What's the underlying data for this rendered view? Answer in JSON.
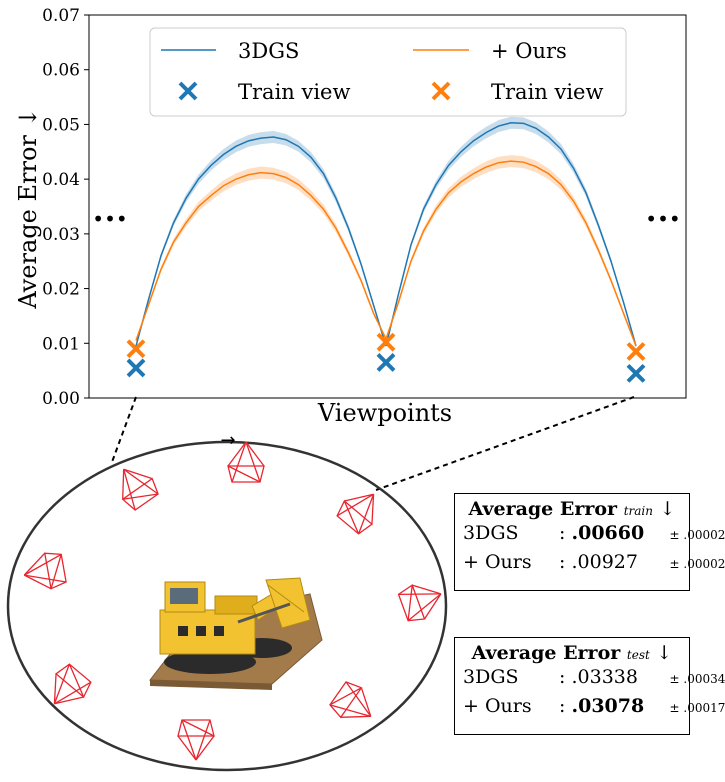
{
  "chart_data": {
    "type": "line",
    "xlabel": "Viewpoints",
    "ylabel": "Average Error ↓",
    "ylim": [
      0,
      0.07
    ],
    "yticks": [
      "0.00",
      "0.01",
      "0.02",
      "0.03",
      "0.04",
      "0.05",
      "0.06",
      "0.07"
    ],
    "x_tick_labels": "none",
    "grid": false,
    "legend_placement": "top-center",
    "ellipsis_markers": [
      "•••",
      "•••"
    ],
    "series": [
      {
        "name": "3DGS",
        "color": "#1f77b4",
        "segments": [
          {
            "x": [
              0,
              0.05,
              0.1,
              0.15,
              0.2,
              0.25,
              0.3,
              0.35,
              0.4,
              0.45,
              0.5,
              0.55,
              0.6,
              0.65,
              0.7,
              0.75,
              0.8,
              0.85,
              0.9,
              0.95,
              1.0
            ],
            "y": [
              0.0095,
              0.018,
              0.026,
              0.032,
              0.0365,
              0.04,
              0.0425,
              0.0445,
              0.046,
              0.047,
              0.0475,
              0.0477,
              0.0472,
              0.046,
              0.044,
              0.041,
              0.0365,
              0.031,
              0.0245,
              0.017,
              0.0095
            ]
          },
          {
            "x": [
              1.0,
              1.05,
              1.1,
              1.15,
              1.2,
              1.25,
              1.3,
              1.35,
              1.4,
              1.45,
              1.5,
              1.55,
              1.6,
              1.65,
              1.7,
              1.75,
              1.8,
              1.85,
              1.9,
              1.95,
              2.0
            ],
            "y": [
              0.0095,
              0.019,
              0.028,
              0.0345,
              0.039,
              0.0425,
              0.045,
              0.047,
              0.0485,
              0.0497,
              0.0503,
              0.0502,
              0.0493,
              0.0477,
              0.0455,
              0.042,
              0.0375,
              0.0315,
              0.025,
              0.0175,
              0.0095
            ]
          }
        ]
      },
      {
        "name": "+ Ours",
        "color": "#ff7f0e",
        "segments": [
          {
            "x": [
              0,
              0.05,
              0.1,
              0.15,
              0.2,
              0.25,
              0.3,
              0.35,
              0.4,
              0.45,
              0.5,
              0.55,
              0.6,
              0.65,
              0.7,
              0.75,
              0.8,
              0.85,
              0.9,
              0.95,
              1.0
            ],
            "y": [
              0.0105,
              0.017,
              0.0235,
              0.0285,
              0.032,
              0.035,
              0.037,
              0.0388,
              0.04,
              0.0408,
              0.0412,
              0.041,
              0.0403,
              0.039,
              0.037,
              0.0345,
              0.031,
              0.0265,
              0.0215,
              0.0155,
              0.0108
            ]
          },
          {
            "x": [
              1.0,
              1.05,
              1.1,
              1.15,
              1.2,
              1.25,
              1.3,
              1.35,
              1.4,
              1.45,
              1.5,
              1.55,
              1.6,
              1.65,
              1.7,
              1.75,
              1.8,
              1.85,
              1.9,
              1.95,
              2.0
            ],
            "y": [
              0.0108,
              0.0175,
              0.025,
              0.0305,
              0.0345,
              0.0375,
              0.0395,
              0.041,
              0.0422,
              0.043,
              0.0433,
              0.0431,
              0.0423,
              0.041,
              0.039,
              0.036,
              0.032,
              0.027,
              0.0215,
              0.0155,
              0.0095
            ]
          }
        ]
      }
    ],
    "train_views": [
      {
        "name": "Train view",
        "color": "#1f77b4",
        "x": [
          0,
          1,
          2
        ],
        "y": [
          0.0055,
          0.0065,
          0.0045
        ]
      },
      {
        "name": "Train view",
        "color": "#ff7f0e",
        "x": [
          0,
          1,
          2
        ],
        "y": [
          0.009,
          0.0102,
          0.0085
        ]
      }
    ]
  },
  "legend": {
    "line1": "3DGS",
    "line2": "+ Ours",
    "marker1": "Train view",
    "marker2": "Train view"
  },
  "train_box": {
    "title": "Average Error",
    "sub": "train",
    "arrow": "↓",
    "rows": [
      {
        "name": "3DGS",
        "sep": ":",
        "value": ".00660",
        "bold": true,
        "pm": "± .00002"
      },
      {
        "name": "+ Ours",
        "sep": ":",
        "value": ".00927",
        "bold": false,
        "pm": "± .00002"
      }
    ]
  },
  "test_box": {
    "title": "Average Error",
    "sub": "test",
    "arrow": "↓",
    "rows": [
      {
        "name": "3DGS",
        "sep": ":",
        "value": ".03338",
        "bold": false,
        "pm": "± .00034"
      },
      {
        "name": "+ Ours",
        "sep": ":",
        "value": ".03078",
        "bold": true,
        "pm": "± .00017"
      }
    ]
  },
  "scene": {
    "orbit_arrow": "→",
    "camera_color": "#e8262f",
    "object_colors": {
      "brick": "#f2c230",
      "base": "#a37a4a",
      "dark": "#2b2b2b"
    }
  }
}
